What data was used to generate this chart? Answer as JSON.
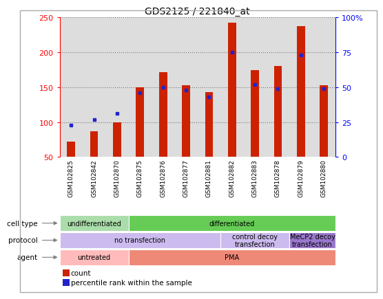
{
  "title": "GDS2125 / 221840_at",
  "samples": [
    "GSM102825",
    "GSM102842",
    "GSM102870",
    "GSM102875",
    "GSM102876",
    "GSM102877",
    "GSM102881",
    "GSM102882",
    "GSM102883",
    "GSM102878",
    "GSM102879",
    "GSM102880"
  ],
  "count_values": [
    72,
    87,
    100,
    150,
    172,
    153,
    143,
    243,
    175,
    180,
    238,
    153
  ],
  "percentile_values": [
    23,
    27,
    31,
    46,
    50,
    48,
    43,
    75,
    52,
    49,
    73,
    49
  ],
  "ylim_left": [
    50,
    250
  ],
  "ylim_right": [
    0,
    100
  ],
  "left_ticks": [
    50,
    100,
    150,
    200,
    250
  ],
  "right_ticks": [
    0,
    25,
    50,
    75,
    100
  ],
  "right_tick_labels": [
    "0",
    "25",
    "50",
    "75",
    "100%"
  ],
  "bar_color": "#cc2200",
  "dot_color": "#2222cc",
  "bar_width": 0.35,
  "cell_type_row": {
    "label": "cell type",
    "segments": [
      {
        "text": "undifferentiated",
        "start": 0,
        "end": 3,
        "color": "#aaddaa"
      },
      {
        "text": "differentiated",
        "start": 3,
        "end": 12,
        "color": "#66cc55"
      }
    ]
  },
  "protocol_row": {
    "label": "protocol",
    "segments": [
      {
        "text": "no transfection",
        "start": 0,
        "end": 7,
        "color": "#ccbbee"
      },
      {
        "text": "control decoy\ntransfection",
        "start": 7,
        "end": 10,
        "color": "#ccbbee"
      },
      {
        "text": "MeCP2 decoy\ntransfection",
        "start": 10,
        "end": 12,
        "color": "#9977cc"
      }
    ]
  },
  "agent_row": {
    "label": "agent",
    "segments": [
      {
        "text": "untreated",
        "start": 0,
        "end": 3,
        "color": "#ffbbbb"
      },
      {
        "text": "PMA",
        "start": 3,
        "end": 12,
        "color": "#ee8877"
      }
    ]
  },
  "legend_items": [
    {
      "label": "count",
      "color": "#cc2200"
    },
    {
      "label": "percentile rank within the sample",
      "color": "#2222cc"
    }
  ],
  "bg_color": "#ffffff",
  "grid_color": "#777777",
  "axis_bg": "#dddddd"
}
